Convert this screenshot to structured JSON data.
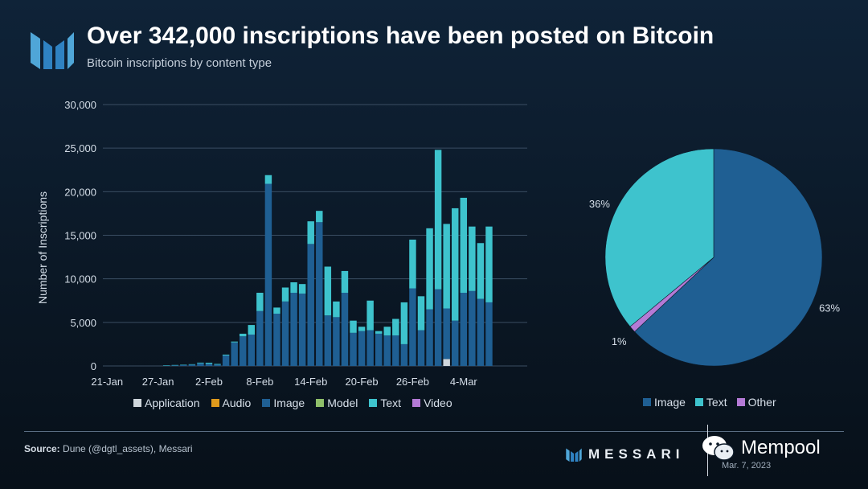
{
  "header": {
    "title": "Over 342,000 inscriptions have been posted on Bitcoin",
    "subtitle": "Bitcoin inscriptions by content type"
  },
  "colors": {
    "image": "#1f5f93",
    "text": "#3ec3cd",
    "application": "#cfd6dc",
    "audio": "#e09a1c",
    "model": "#8fbf6a",
    "video": "#b47ad6",
    "other": "#b47ad6",
    "grid": "#3a4d62"
  },
  "chart_data": [
    {
      "type": "bar",
      "stacked": true,
      "title": "Bitcoin inscriptions by content type",
      "ylabel": "Number of Inscriptions",
      "xlabel": "",
      "ylim": [
        0,
        30000
      ],
      "yticks": [
        "0",
        "5,000",
        "10,000",
        "15,000",
        "20,000",
        "25,000",
        "30,000"
      ],
      "ytick_values": [
        0,
        5000,
        10000,
        15000,
        20000,
        25000,
        30000
      ],
      "xtick_labels": [
        "21-Jan",
        "27-Jan",
        "2-Feb",
        "8-Feb",
        "14-Feb",
        "20-Feb",
        "26-Feb",
        "4-Mar"
      ],
      "xtick_index": [
        0,
        6,
        12,
        18,
        24,
        30,
        36,
        42
      ],
      "series": [
        {
          "name": "Application",
          "key": "application",
          "values": [
            0,
            0,
            0,
            0,
            0,
            0,
            0,
            0,
            0,
            0,
            0,
            0,
            0,
            0,
            0,
            0,
            0,
            0,
            0,
            0,
            0,
            0,
            0,
            0,
            0,
            0,
            0,
            0,
            0,
            0,
            0,
            0,
            0,
            0,
            0,
            0,
            0,
            0,
            0,
            0,
            800,
            0,
            0,
            0,
            0,
            0,
            0,
            0,
            0,
            0
          ]
        },
        {
          "name": "Audio",
          "key": "audio",
          "values": [
            0,
            0,
            0,
            0,
            0,
            0,
            0,
            0,
            0,
            0,
            0,
            0,
            0,
            0,
            0,
            0,
            0,
            0,
            0,
            0,
            0,
            0,
            0,
            0,
            0,
            0,
            0,
            0,
            0,
            0,
            0,
            0,
            0,
            0,
            0,
            0,
            0,
            0,
            0,
            0,
            0,
            0,
            0,
            0,
            0,
            0,
            0,
            0,
            0,
            0
          ]
        },
        {
          "name": "Image",
          "key": "image",
          "values": [
            0,
            0,
            0,
            0,
            0,
            0,
            0,
            50,
            80,
            100,
            150,
            300,
            250,
            150,
            1200,
            2700,
            3400,
            3600,
            6300,
            20900,
            6000,
            7400,
            8400,
            8300,
            14000,
            16500,
            5800,
            5600,
            8400,
            3800,
            4000,
            4100,
            3700,
            3500,
            3500,
            2500,
            8900,
            4100,
            6500,
            8800,
            5800,
            5200,
            8400,
            8600,
            7700,
            7300,
            0,
            0,
            0,
            0
          ]
        },
        {
          "name": "Model",
          "key": "model",
          "values": [
            0,
            0,
            0,
            0,
            0,
            0,
            0,
            0,
            0,
            0,
            0,
            0,
            0,
            0,
            0,
            0,
            0,
            0,
            0,
            0,
            0,
            0,
            0,
            0,
            0,
            0,
            0,
            0,
            0,
            0,
            0,
            0,
            0,
            0,
            0,
            0,
            0,
            0,
            0,
            0,
            0,
            0,
            0,
            0,
            0,
            0,
            0,
            0,
            0,
            0
          ]
        },
        {
          "name": "Text",
          "key": "text",
          "values": [
            0,
            0,
            0,
            0,
            0,
            0,
            0,
            20,
            30,
            40,
            50,
            80,
            120,
            80,
            100,
            100,
            300,
            1100,
            2100,
            1000,
            700,
            1600,
            1200,
            1100,
            2600,
            1300,
            5600,
            1800,
            2500,
            1400,
            500,
            3400,
            300,
            1000,
            1900,
            4800,
            5600,
            3900,
            9300,
            16000,
            9700,
            12900,
            10900,
            7400,
            6400,
            8700,
            0,
            0,
            0,
            0
          ]
        },
        {
          "name": "Video",
          "key": "video",
          "values": [
            0,
            0,
            0,
            0,
            0,
            0,
            0,
            0,
            0,
            0,
            0,
            0,
            0,
            0,
            0,
            0,
            0,
            0,
            0,
            0,
            0,
            0,
            0,
            0,
            0,
            0,
            0,
            0,
            0,
            0,
            0,
            0,
            0,
            0,
            0,
            0,
            0,
            0,
            0,
            0,
            0,
            0,
            0,
            0,
            0,
            0,
            0,
            0,
            0,
            0
          ]
        }
      ],
      "legend": [
        "Application",
        "Audio",
        "Image",
        "Model",
        "Text",
        "Video"
      ],
      "legend_position": "bottom"
    },
    {
      "type": "pie",
      "slices": [
        {
          "name": "Image",
          "key": "image",
          "value": 63,
          "label": "63%"
        },
        {
          "name": "Other",
          "key": "other",
          "value": 1,
          "label": "1%"
        },
        {
          "name": "Text",
          "key": "text",
          "value": 36,
          "label": "36%"
        }
      ],
      "legend": [
        "Image",
        "Text",
        "Other"
      ],
      "legend_position": "bottom"
    }
  ],
  "footer": {
    "source_label": "Source:",
    "source_text": " Dune (@dgtl_assets), Messari",
    "brand": "MESSARI",
    "date": "Mar. 7, 2023",
    "watermark": "Mempool"
  }
}
